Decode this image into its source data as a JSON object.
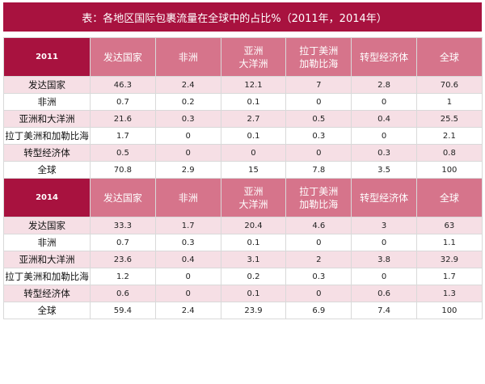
{
  "title": "表：各地区国际包裹流量在全球中的占比%（2011年，2014年）",
  "colors": {
    "title_bg": "#a8123f",
    "header_bg": "#d6748b",
    "stripe_bg": "#f6dfe5"
  },
  "tables": [
    {
      "year": "2011",
      "headers": [
        [
          "发达国家"
        ],
        [
          "非洲"
        ],
        [
          "亚洲",
          "大洋洲"
        ],
        [
          "拉丁美洲",
          "加勒比海"
        ],
        [
          "转型经济体"
        ],
        [
          "全球"
        ]
      ],
      "rows": [
        {
          "label": "发达国家",
          "values": [
            "46.3",
            "2.4",
            "12.1",
            "7",
            "2.8",
            "70.6"
          ]
        },
        {
          "label": "非洲",
          "values": [
            "0.7",
            "0.2",
            "0.1",
            "0",
            "0",
            "1"
          ]
        },
        {
          "label": "亚洲和大洋洲",
          "values": [
            "21.6",
            "0.3",
            "2.7",
            "0.5",
            "0.4",
            "25.5"
          ]
        },
        {
          "label": "拉丁美洲和加勒比海",
          "values": [
            "1.7",
            "0",
            "0.1",
            "0.3",
            "0",
            "2.1"
          ]
        },
        {
          "label": "转型经济体",
          "values": [
            "0.5",
            "0",
            "0",
            "0",
            "0.3",
            "0.8"
          ]
        },
        {
          "label": "全球",
          "values": [
            "70.8",
            "2.9",
            "15",
            "7.8",
            "3.5",
            "100"
          ]
        }
      ]
    },
    {
      "year": "2014",
      "headers": [
        [
          "发达国家"
        ],
        [
          "非洲"
        ],
        [
          "亚洲",
          "大洋洲"
        ],
        [
          "拉丁美洲",
          "加勒比海"
        ],
        [
          "转型经济体"
        ],
        [
          "全球"
        ]
      ],
      "rows": [
        {
          "label": "发达国家",
          "values": [
            "33.3",
            "1.7",
            "20.4",
            "4.6",
            "3",
            "63"
          ]
        },
        {
          "label": "非洲",
          "values": [
            "0.7",
            "0.3",
            "0.1",
            "0",
            "0",
            "1.1"
          ]
        },
        {
          "label": "亚洲和大洋洲",
          "values": [
            "23.6",
            "0.4",
            "3.1",
            "2",
            "3.8",
            "32.9"
          ]
        },
        {
          "label": "拉丁美洲和加勒比海",
          "values": [
            "1.2",
            "0",
            "0.2",
            "0.3",
            "0",
            "1.7"
          ]
        },
        {
          "label": "转型经济体",
          "values": [
            "0.6",
            "0",
            "0.1",
            "0",
            "0.6",
            "1.3"
          ]
        },
        {
          "label": "全球",
          "values": [
            "59.4",
            "2.4",
            "23.9",
            "6.9",
            "7.4",
            "100"
          ]
        }
      ]
    }
  ]
}
